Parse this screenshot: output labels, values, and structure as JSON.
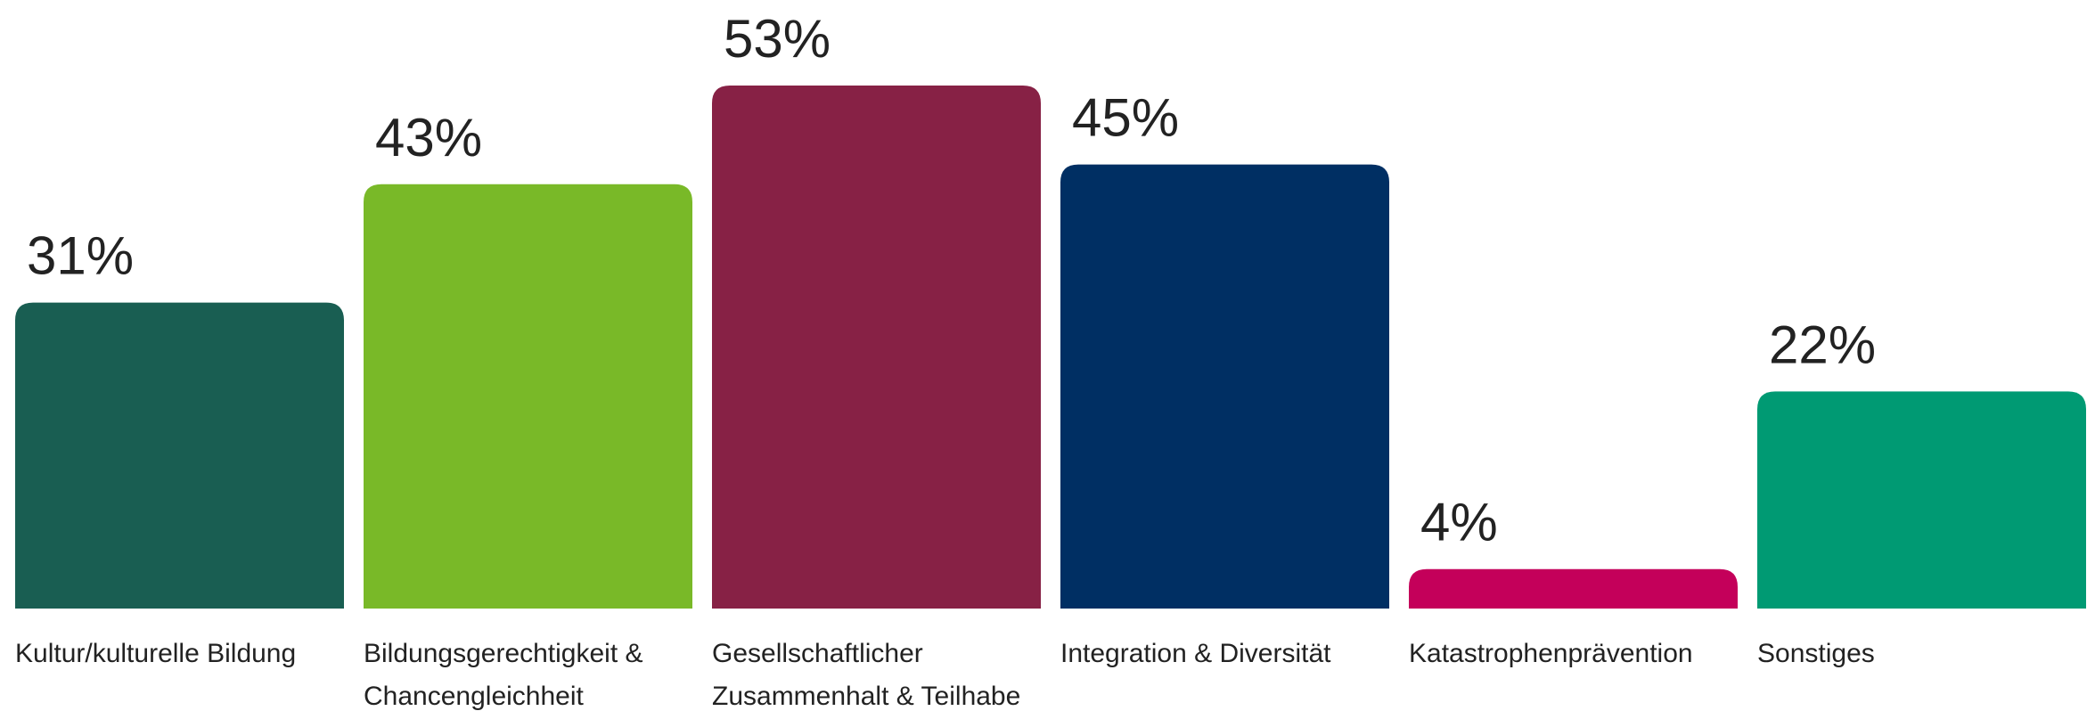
{
  "chart_data": {
    "type": "bar",
    "title": "",
    "xlabel": "",
    "ylabel": "",
    "ylim": [
      0,
      53
    ],
    "grid": false,
    "categories": [
      [
        "Kultur/kulturelle Bildung"
      ],
      [
        "Bildungsgerechtigkeit &",
        "Chancengleichheit"
      ],
      [
        "Gesellschaftlicher",
        "Zusammenhalt & Teilhabe"
      ],
      [
        "Integration & Diversität"
      ],
      [
        "Katastrophenprävention"
      ],
      [
        "Sonstiges"
      ]
    ],
    "values": [
      31,
      43,
      53,
      45,
      4,
      22
    ],
    "value_labels": [
      "31%",
      "43%",
      "53%",
      "45%",
      "4%",
      "22%"
    ],
    "colors": [
      "#195e52",
      "#79b928",
      "#872145",
      "#002f63",
      "#c4005a",
      "#009a73"
    ]
  }
}
